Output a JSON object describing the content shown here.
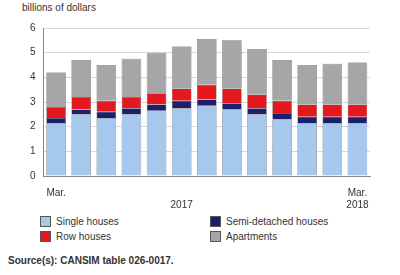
{
  "chart_data": {
    "type": "bar",
    "stacked": true,
    "grid": true,
    "legend": "bottom",
    "ylabel": "billions of dollars",
    "source": "Source(s): CANSIM table 026-0017.",
    "categories": [
      [
        "Mar.",
        null
      ],
      null,
      null,
      null,
      null,
      [
        null,
        "2017"
      ],
      null,
      null,
      null,
      null,
      null,
      null,
      [
        "Mar.",
        "2018"
      ]
    ],
    "series": [
      {
        "name": "Single houses",
        "color": "#a5c8ec",
        "values": [
          2.15,
          2.5,
          2.35,
          2.5,
          2.65,
          2.75,
          2.85,
          2.7,
          2.5,
          2.3,
          2.15,
          2.15,
          2.15
        ]
      },
      {
        "name": "Semi-detached houses",
        "color": "#1c1f6b",
        "values": [
          0.2,
          0.2,
          0.25,
          0.25,
          0.25,
          0.3,
          0.25,
          0.25,
          0.25,
          0.25,
          0.25,
          0.25,
          0.25
        ]
      },
      {
        "name": "Row houses",
        "color": "#e3191f",
        "values": [
          0.45,
          0.5,
          0.45,
          0.45,
          0.45,
          0.5,
          0.6,
          0.6,
          0.55,
          0.5,
          0.5,
          0.5,
          0.5
        ]
      },
      {
        "name": "Apartments",
        "color": "#a6a6a6",
        "values": [
          1.4,
          1.5,
          1.45,
          1.55,
          1.65,
          1.7,
          1.85,
          1.95,
          1.85,
          1.65,
          1.6,
          1.65,
          1.7
        ]
      }
    ],
    "ylim": [
      0,
      6
    ],
    "yticks": [
      0,
      1,
      2,
      3,
      4,
      5,
      6
    ]
  }
}
